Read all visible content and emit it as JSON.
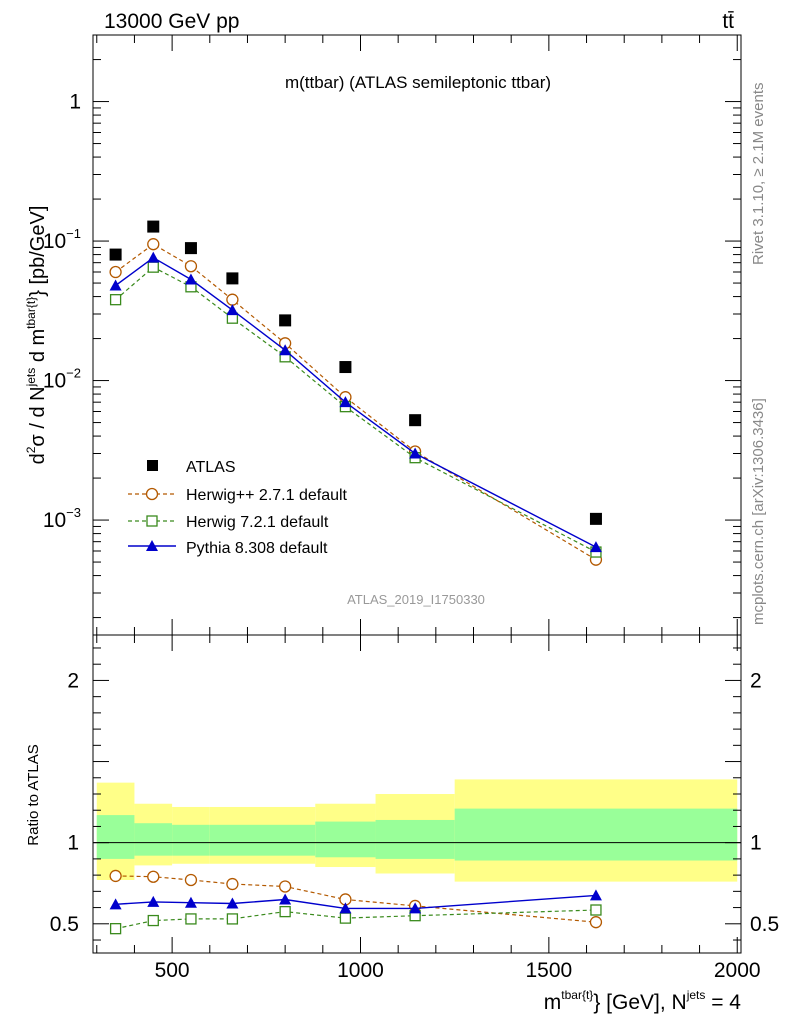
{
  "header": {
    "left": "13000 GeV pp",
    "right": "tt̄"
  },
  "side": {
    "rivet": "Rivet 3.1.10, ≥ 2.1M events",
    "mcplots": "mcplots.cern.ch [arXiv:1306.3436]"
  },
  "chart_data": [
    {
      "type": "scatter",
      "title": "m(ttbar) (ATLAS semileptonic ttbar)",
      "ylabel": "d²σ / d N^jets d m^tbar{t}} [pb/GeV]",
      "ylabel_parts": {
        "pre": "d",
        "sup1": "2",
        "mid": "σ  /  d N",
        "sup2": "jets",
        "mid2": " d m",
        "sup3": "tbar{t}",
        "post": "} [pb/GeV]"
      },
      "xlabel": "m^tbar{t}} [GeV], N^jets = 4",
      "yscale": "log",
      "ylim": [
        0.00015,
        3.0
      ],
      "xlim": [
        290,
        2010
      ],
      "ytick_labels": [
        {
          "value": 1,
          "base": "1",
          "exp": ""
        },
        {
          "value": 0.1,
          "base": "10",
          "exp": "−1"
        },
        {
          "value": 0.01,
          "base": "10",
          "exp": "−2"
        },
        {
          "value": 0.001,
          "base": "10",
          "exp": "−3"
        }
      ],
      "watermark": "ATLAS_2019_I1750330",
      "legend_position": "bottom-left",
      "bin_edges": [
        300,
        400,
        500,
        600,
        720,
        880,
        1040,
        1250,
        2000
      ],
      "series": [
        {
          "name": "ATLAS",
          "style": "square-filled",
          "color": "#000000",
          "x": [
            350,
            450,
            550,
            660,
            800,
            960,
            1145,
            1625
          ],
          "y": [
            0.08,
            0.127,
            0.089,
            0.054,
            0.027,
            0.0125,
            0.0052,
            0.00102
          ]
        },
        {
          "name": "Herwig++ 2.7.1 default",
          "style": "circle-open-dashed",
          "color": "#b35900",
          "x": [
            350,
            450,
            550,
            660,
            800,
            960,
            1145,
            1625
          ],
          "y": [
            0.06,
            0.095,
            0.066,
            0.038,
            0.0185,
            0.0076,
            0.0031,
            0.00052
          ]
        },
        {
          "name": "Herwig 7.2.1 default",
          "style": "square-open-dashed",
          "color": "#3a8a1d",
          "x": [
            350,
            450,
            550,
            660,
            800,
            960,
            1145,
            1625
          ],
          "y": [
            0.038,
            0.065,
            0.047,
            0.028,
            0.0148,
            0.0065,
            0.0028,
            0.00059
          ]
        },
        {
          "name": "Pythia 8.308 default",
          "style": "triangle-filled-solid",
          "color": "#0000cc",
          "x": [
            350,
            450,
            550,
            660,
            800,
            960,
            1145,
            1625
          ],
          "y": [
            0.048,
            0.076,
            0.053,
            0.032,
            0.0165,
            0.007,
            0.003,
            0.00064
          ]
        }
      ]
    },
    {
      "type": "line",
      "ylabel": "Ratio to ATLAS",
      "ylim": [
        0.32,
        2.28
      ],
      "xlim": [
        290,
        2010
      ],
      "yticks": [
        0.5,
        1,
        2
      ],
      "ytick_labels": [
        "0.5",
        "1",
        "2"
      ],
      "xticks": [
        500,
        1000,
        1500,
        2000
      ],
      "xtick_labels": [
        "500",
        "1000",
        "1500",
        "2000"
      ],
      "reference_line": 1,
      "band_colors": {
        "stat": "#99ff99",
        "total": "#ffff88"
      },
      "bands": [
        {
          "x0": 300,
          "x1": 400,
          "inner": [
            0.9,
            1.17
          ],
          "outer": [
            0.77,
            1.37
          ]
        },
        {
          "x0": 400,
          "x1": 500,
          "inner": [
            0.92,
            1.12
          ],
          "outer": [
            0.86,
            1.24
          ]
        },
        {
          "x0": 500,
          "x1": 600,
          "inner": [
            0.92,
            1.11
          ],
          "outer": [
            0.87,
            1.22
          ]
        },
        {
          "x0": 600,
          "x1": 720,
          "inner": [
            0.92,
            1.11
          ],
          "outer": [
            0.87,
            1.22
          ]
        },
        {
          "x0": 720,
          "x1": 880,
          "inner": [
            0.92,
            1.11
          ],
          "outer": [
            0.87,
            1.22
          ]
        },
        {
          "x0": 880,
          "x1": 1040,
          "inner": [
            0.91,
            1.13
          ],
          "outer": [
            0.85,
            1.24
          ]
        },
        {
          "x0": 1040,
          "x1": 1250,
          "inner": [
            0.9,
            1.14
          ],
          "outer": [
            0.81,
            1.3
          ]
        },
        {
          "x0": 1250,
          "x1": 2000,
          "inner": [
            0.89,
            1.21
          ],
          "outer": [
            0.76,
            1.39
          ]
        }
      ],
      "series": [
        {
          "name": "Herwig++ 2.7.1 default",
          "style": "circle-open-dashed",
          "color": "#b35900",
          "x": [
            350,
            450,
            550,
            660,
            800,
            960,
            1145,
            1625
          ],
          "y": [
            0.795,
            0.79,
            0.77,
            0.745,
            0.73,
            0.65,
            0.61,
            0.51
          ]
        },
        {
          "name": "Herwig 7.2.1 default",
          "style": "square-open-dashed",
          "color": "#3a8a1d",
          "x": [
            350,
            450,
            550,
            660,
            800,
            960,
            1145,
            1625
          ],
          "y": [
            0.47,
            0.52,
            0.53,
            0.53,
            0.575,
            0.535,
            0.55,
            0.585
          ]
        },
        {
          "name": "Pythia 8.308 default",
          "style": "triangle-filled-solid",
          "color": "#0000cc",
          "x": [
            350,
            450,
            550,
            660,
            800,
            960,
            1145,
            1625
          ],
          "y": [
            0.62,
            0.635,
            0.63,
            0.625,
            0.65,
            0.595,
            0.595,
            0.675
          ]
        }
      ]
    }
  ]
}
